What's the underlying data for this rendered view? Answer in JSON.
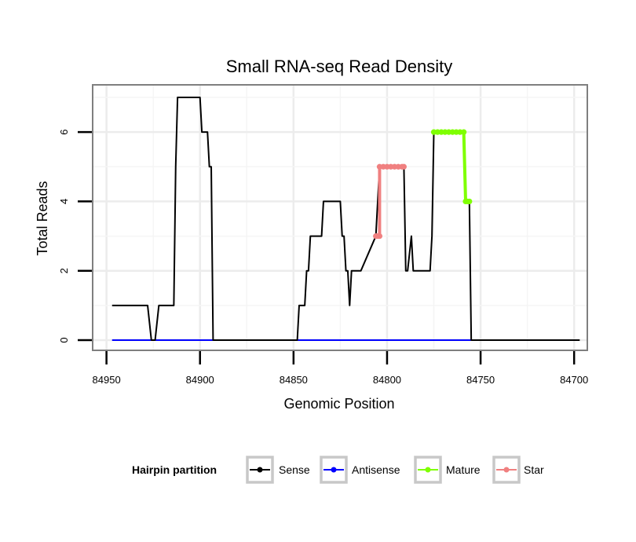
{
  "chart_data": {
    "type": "line",
    "title": "Small RNA-seq Read Density",
    "xlabel": "Genomic Position",
    "ylabel": "Total Reads",
    "x_reversed": true,
    "xlim": [
      84955,
      84695
    ],
    "ylim": [
      0,
      7
    ],
    "x_ticks": [
      84950,
      84900,
      84850,
      84800,
      84750,
      84700
    ],
    "x_tick_labels": [
      "84950",
      "84900",
      "84850",
      "84800",
      "84750",
      "84700"
    ],
    "y_ticks": [
      0,
      2,
      4,
      6
    ],
    "y_tick_labels": [
      "0",
      "2",
      "4",
      "6"
    ],
    "grid": true,
    "legend": {
      "title": "Hairpin partition",
      "position": "bottom",
      "entries": [
        {
          "name": "Sense",
          "color": "#000000"
        },
        {
          "name": "Antisense",
          "color": "#0000ff"
        },
        {
          "name": "Mature",
          "color": "#7fff00"
        },
        {
          "name": "Star",
          "color": "#f08080"
        }
      ]
    },
    "series": [
      {
        "name": "Sense",
        "color": "#000000",
        "points": [
          [
            84947,
            1
          ],
          [
            84928,
            1
          ],
          [
            84926,
            0
          ],
          [
            84924,
            0
          ],
          [
            84922,
            1
          ],
          [
            84914,
            1
          ],
          [
            84913,
            5
          ],
          [
            84912,
            7
          ],
          [
            84900,
            7
          ],
          [
            84899,
            6
          ],
          [
            84896,
            6
          ],
          [
            84895,
            5
          ],
          [
            84894,
            5
          ],
          [
            84893,
            0
          ],
          [
            84848,
            0
          ],
          [
            84847,
            1
          ],
          [
            84844,
            1
          ],
          [
            84843,
            2
          ],
          [
            84842,
            2
          ],
          [
            84841,
            3
          ],
          [
            84835,
            3
          ],
          [
            84834,
            4
          ],
          [
            84825,
            4
          ],
          [
            84824,
            3
          ],
          [
            84823,
            3
          ],
          [
            84822,
            2
          ],
          [
            84821,
            2
          ],
          [
            84820,
            1
          ],
          [
            84819,
            2
          ],
          [
            84814,
            2
          ],
          [
            84806,
            3
          ],
          [
            84804,
            5
          ],
          [
            84791,
            5
          ],
          [
            84790,
            2
          ],
          [
            84789,
            2
          ],
          [
            84787,
            3
          ],
          [
            84786,
            2
          ],
          [
            84777,
            2
          ],
          [
            84776,
            3
          ],
          [
            84775,
            6
          ],
          [
            84759,
            6
          ],
          [
            84758,
            4
          ],
          [
            84756,
            4
          ],
          [
            84755,
            0
          ],
          [
            84697,
            0
          ]
        ]
      },
      {
        "name": "Antisense",
        "color": "#0000ff",
        "points": [
          [
            84947,
            0
          ],
          [
            84755,
            0
          ]
        ]
      },
      {
        "name": "Mature",
        "color": "#7fff00",
        "points": [
          [
            84775,
            6
          ],
          [
            84773,
            6
          ],
          [
            84771,
            6
          ],
          [
            84769,
            6
          ],
          [
            84767,
            6
          ],
          [
            84765,
            6
          ],
          [
            84763,
            6
          ],
          [
            84761,
            6
          ],
          [
            84759,
            6
          ],
          [
            84758,
            4
          ],
          [
            84757,
            4
          ],
          [
            84756,
            4
          ]
        ]
      },
      {
        "name": "Star",
        "color": "#f08080",
        "points": [
          [
            84806,
            3
          ],
          [
            84805,
            3
          ],
          [
            84804,
            3
          ],
          [
            84804,
            5
          ],
          [
            84802,
            5
          ],
          [
            84800,
            5
          ],
          [
            84798,
            5
          ],
          [
            84796,
            5
          ],
          [
            84794,
            5
          ],
          [
            84792,
            5
          ],
          [
            84791,
            5
          ]
        ]
      }
    ]
  }
}
